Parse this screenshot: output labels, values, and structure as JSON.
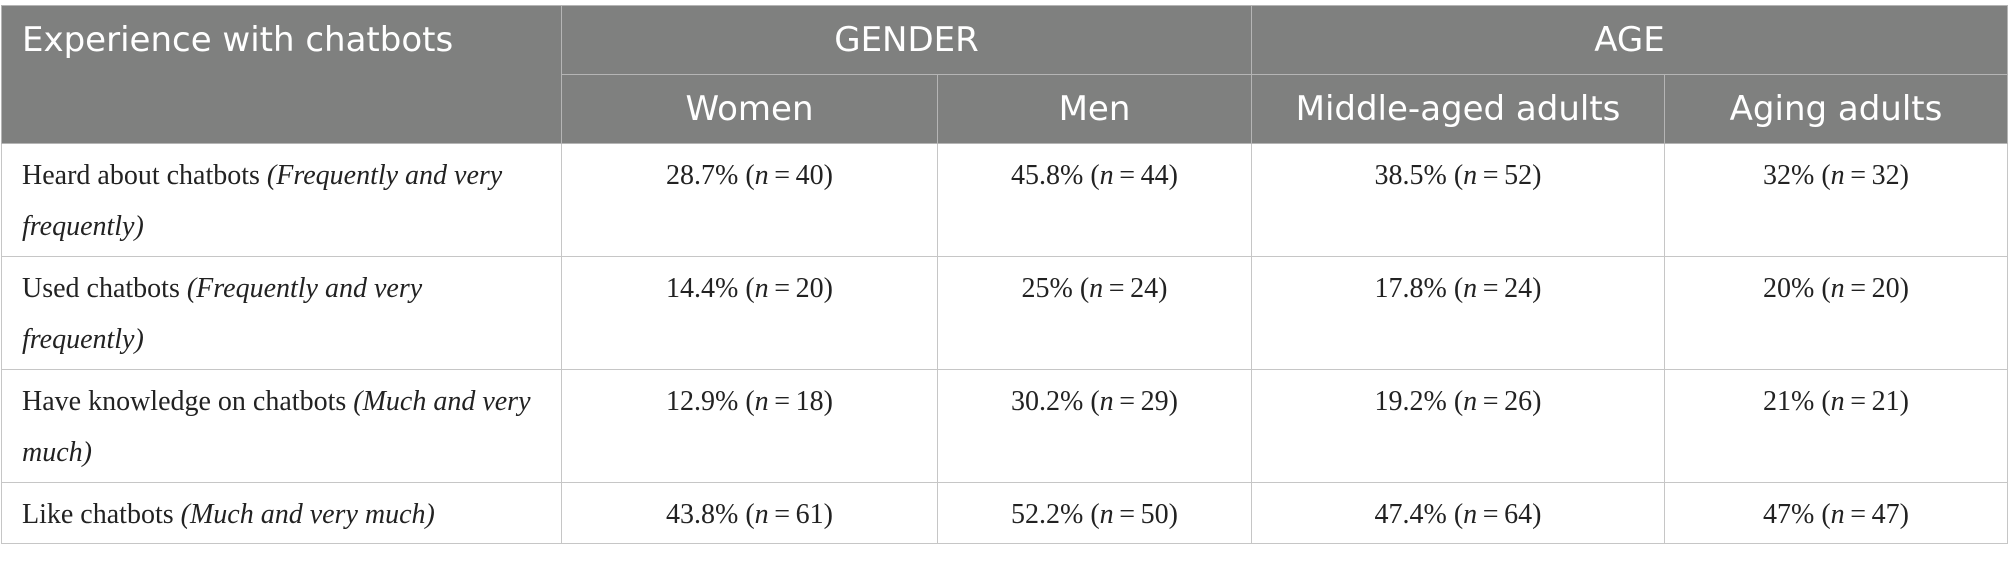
{
  "table": {
    "header": {
      "first": "Experience with chatbots",
      "groups": [
        "GENDER",
        "AGE"
      ],
      "columns": [
        "Women",
        "Men",
        "Middle-aged adults",
        "Aging adults"
      ]
    },
    "rows": [
      {
        "label": "Heard about chatbots",
        "qualifier": "(Frequently and very frequently)",
        "cells": [
          [
            "28.7% (",
            "n",
            " = 40)"
          ],
          [
            "45.8% (",
            "n",
            " = 44)"
          ],
          [
            "38.5% (",
            "n",
            " = 52)"
          ],
          [
            "32% (",
            "n",
            " = 32)"
          ]
        ]
      },
      {
        "label": "Used chatbots",
        "qualifier": "(Frequently and very frequently)",
        "cells": [
          [
            "14.4% (",
            "n",
            " = 20)"
          ],
          [
            "25% (",
            "n",
            " = 24)"
          ],
          [
            "17.8% (",
            "n",
            " = 24)"
          ],
          [
            "20% (",
            "n",
            " = 20)"
          ]
        ]
      },
      {
        "label": "Have knowledge on chatbots",
        "qualifier": "(Much and very much)",
        "cells": [
          [
            "12.9% (",
            "n",
            " = 18)"
          ],
          [
            "30.2% (",
            "n",
            " = 29)"
          ],
          [
            "19.2% (",
            "n",
            " = 26)"
          ],
          [
            "21% (",
            "n",
            " = 21)"
          ]
        ]
      },
      {
        "label": "Like chatbots",
        "qualifier": "(Much and very much)",
        "cells": [
          [
            "43.8% (",
            "n",
            " = 61)"
          ],
          [
            "52.2% (",
            "n",
            " = 50)"
          ],
          [
            "47.4% (",
            "n",
            " = 64)"
          ],
          [
            "47% (",
            "n",
            " = 47)"
          ]
        ]
      }
    ]
  }
}
